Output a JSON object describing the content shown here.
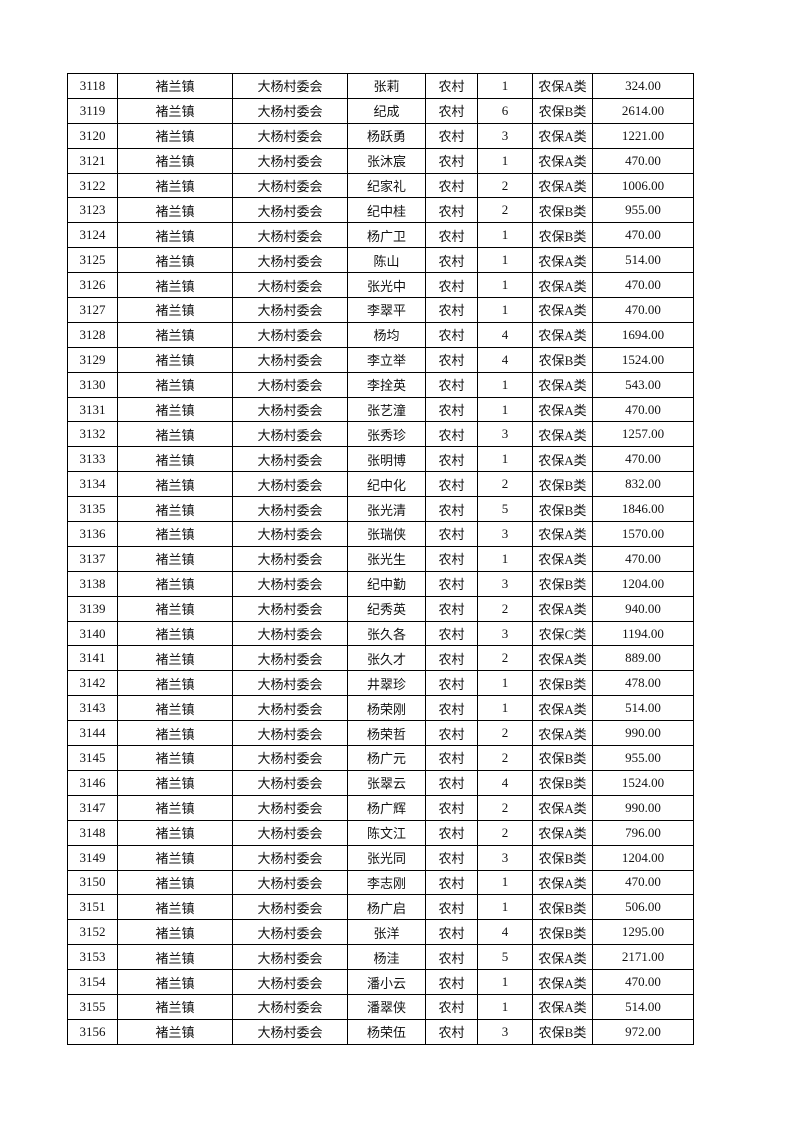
{
  "table": {
    "columns": [
      "no",
      "town",
      "village",
      "name",
      "type",
      "count",
      "category",
      "amount"
    ],
    "rows": [
      [
        "3118",
        "褚兰镇",
        "大杨村委会",
        "张莉",
        "农村",
        "1",
        "农保A类",
        "324.00"
      ],
      [
        "3119",
        "褚兰镇",
        "大杨村委会",
        "纪成",
        "农村",
        "6",
        "农保B类",
        "2614.00"
      ],
      [
        "3120",
        "褚兰镇",
        "大杨村委会",
        "杨跃勇",
        "农村",
        "3",
        "农保A类",
        "1221.00"
      ],
      [
        "3121",
        "褚兰镇",
        "大杨村委会",
        "张沐宸",
        "农村",
        "1",
        "农保A类",
        "470.00"
      ],
      [
        "3122",
        "褚兰镇",
        "大杨村委会",
        "纪家礼",
        "农村",
        "2",
        "农保A类",
        "1006.00"
      ],
      [
        "3123",
        "褚兰镇",
        "大杨村委会",
        "纪中桂",
        "农村",
        "2",
        "农保B类",
        "955.00"
      ],
      [
        "3124",
        "褚兰镇",
        "大杨村委会",
        "杨广卫",
        "农村",
        "1",
        "农保B类",
        "470.00"
      ],
      [
        "3125",
        "褚兰镇",
        "大杨村委会",
        "陈山",
        "农村",
        "1",
        "农保A类",
        "514.00"
      ],
      [
        "3126",
        "褚兰镇",
        "大杨村委会",
        "张光中",
        "农村",
        "1",
        "农保A类",
        "470.00"
      ],
      [
        "3127",
        "褚兰镇",
        "大杨村委会",
        "李翠平",
        "农村",
        "1",
        "农保A类",
        "470.00"
      ],
      [
        "3128",
        "褚兰镇",
        "大杨村委会",
        "杨均",
        "农村",
        "4",
        "农保A类",
        "1694.00"
      ],
      [
        "3129",
        "褚兰镇",
        "大杨村委会",
        "李立举",
        "农村",
        "4",
        "农保B类",
        "1524.00"
      ],
      [
        "3130",
        "褚兰镇",
        "大杨村委会",
        "李拴英",
        "农村",
        "1",
        "农保A类",
        "543.00"
      ],
      [
        "3131",
        "褚兰镇",
        "大杨村委会",
        "张艺潼",
        "农村",
        "1",
        "农保A类",
        "470.00"
      ],
      [
        "3132",
        "褚兰镇",
        "大杨村委会",
        "张秀珍",
        "农村",
        "3",
        "农保A类",
        "1257.00"
      ],
      [
        "3133",
        "褚兰镇",
        "大杨村委会",
        "张明博",
        "农村",
        "1",
        "农保A类",
        "470.00"
      ],
      [
        "3134",
        "褚兰镇",
        "大杨村委会",
        "纪中化",
        "农村",
        "2",
        "农保B类",
        "832.00"
      ],
      [
        "3135",
        "褚兰镇",
        "大杨村委会",
        "张光清",
        "农村",
        "5",
        "农保B类",
        "1846.00"
      ],
      [
        "3136",
        "褚兰镇",
        "大杨村委会",
        "张瑞侠",
        "农村",
        "3",
        "农保A类",
        "1570.00"
      ],
      [
        "3137",
        "褚兰镇",
        "大杨村委会",
        "张光生",
        "农村",
        "1",
        "农保A类",
        "470.00"
      ],
      [
        "3138",
        "褚兰镇",
        "大杨村委会",
        "纪中勤",
        "农村",
        "3",
        "农保B类",
        "1204.00"
      ],
      [
        "3139",
        "褚兰镇",
        "大杨村委会",
        "纪秀英",
        "农村",
        "2",
        "农保A类",
        "940.00"
      ],
      [
        "3140",
        "褚兰镇",
        "大杨村委会",
        "张久各",
        "农村",
        "3",
        "农保C类",
        "1194.00"
      ],
      [
        "3141",
        "褚兰镇",
        "大杨村委会",
        "张久才",
        "农村",
        "2",
        "农保A类",
        "889.00"
      ],
      [
        "3142",
        "褚兰镇",
        "大杨村委会",
        "井翠珍",
        "农村",
        "1",
        "农保B类",
        "478.00"
      ],
      [
        "3143",
        "褚兰镇",
        "大杨村委会",
        "杨荣刚",
        "农村",
        "1",
        "农保A类",
        "514.00"
      ],
      [
        "3144",
        "褚兰镇",
        "大杨村委会",
        "杨荣哲",
        "农村",
        "2",
        "农保A类",
        "990.00"
      ],
      [
        "3145",
        "褚兰镇",
        "大杨村委会",
        "杨广元",
        "农村",
        "2",
        "农保B类",
        "955.00"
      ],
      [
        "3146",
        "褚兰镇",
        "大杨村委会",
        "张翠云",
        "农村",
        "4",
        "农保B类",
        "1524.00"
      ],
      [
        "3147",
        "褚兰镇",
        "大杨村委会",
        "杨广辉",
        "农村",
        "2",
        "农保A类",
        "990.00"
      ],
      [
        "3148",
        "褚兰镇",
        "大杨村委会",
        "陈文江",
        "农村",
        "2",
        "农保A类",
        "796.00"
      ],
      [
        "3149",
        "褚兰镇",
        "大杨村委会",
        "张光同",
        "农村",
        "3",
        "农保B类",
        "1204.00"
      ],
      [
        "3150",
        "褚兰镇",
        "大杨村委会",
        "李志刚",
        "农村",
        "1",
        "农保A类",
        "470.00"
      ],
      [
        "3151",
        "褚兰镇",
        "大杨村委会",
        "杨广启",
        "农村",
        "1",
        "农保B类",
        "506.00"
      ],
      [
        "3152",
        "褚兰镇",
        "大杨村委会",
        "张洋",
        "农村",
        "4",
        "农保B类",
        "1295.00"
      ],
      [
        "3153",
        "褚兰镇",
        "大杨村委会",
        "杨洼",
        "农村",
        "5",
        "农保A类",
        "2171.00"
      ],
      [
        "3154",
        "褚兰镇",
        "大杨村委会",
        "潘小云",
        "农村",
        "1",
        "农保A类",
        "470.00"
      ],
      [
        "3155",
        "褚兰镇",
        "大杨村委会",
        "潘翠侠",
        "农村",
        "1",
        "农保A类",
        "514.00"
      ],
      [
        "3156",
        "褚兰镇",
        "大杨村委会",
        "杨荣伍",
        "农村",
        "3",
        "农保B类",
        "972.00"
      ]
    ]
  }
}
